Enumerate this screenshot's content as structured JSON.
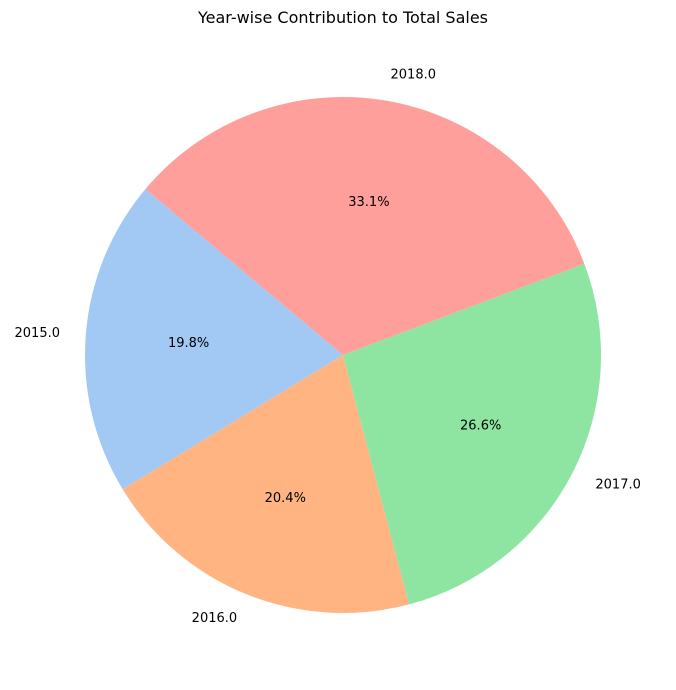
{
  "chart_data": {
    "type": "pie",
    "title": "Year-wise Contribution to Total Sales",
    "categories": [
      "2015.0",
      "2016.0",
      "2017.0",
      "2018.0"
    ],
    "values": [
      19.8,
      20.4,
      26.6,
      33.1
    ],
    "percent_labels": [
      "19.8%",
      "20.4%",
      "26.6%",
      "33.1%"
    ],
    "colors": [
      "#a1c9f4",
      "#ffb482",
      "#8de5a1",
      "#ff9f9b"
    ],
    "start_angle_deg": 140,
    "direction": "counterclockwise",
    "legend": "none"
  }
}
